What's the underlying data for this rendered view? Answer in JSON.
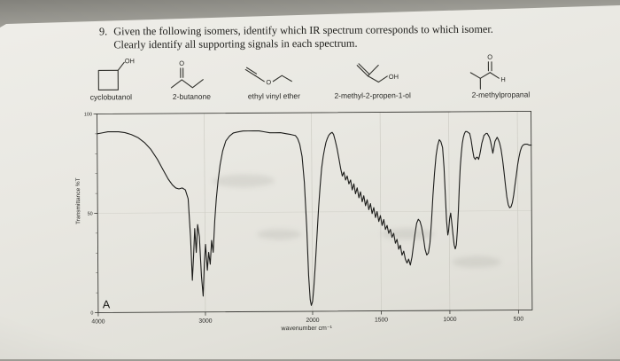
{
  "photo": {
    "paper_color": "#e9e8e2",
    "table_color": "#a9a8a1",
    "ink_color": "#26261f"
  },
  "question": {
    "number": "9.",
    "lines": [
      "Given the following isomers, identify which IR spectrum corresponds to which isomer.",
      "Clearly identify all supporting signals in each spectrum."
    ]
  },
  "molecules": [
    {
      "label": "cyclobutanol",
      "substituent": "OH"
    },
    {
      "label": "2-butanone",
      "carbonyl": "O"
    },
    {
      "label": "ethyl vinyl ether",
      "ether_oxygen": "O"
    },
    {
      "label": "2-methyl-2-propen-1-ol",
      "substituent": "OH"
    },
    {
      "label": "2-methylpropanal",
      "carbonyl": "O",
      "aldehyde_h": "H"
    }
  ],
  "chart_data": {
    "type": "line",
    "title": "",
    "panel_label": "A",
    "xlabel": "wavenumber cm⁻¹",
    "ylabel": "Transmittance %T",
    "x_axis": {
      "unit": "cm⁻¹",
      "max": 4000,
      "scale_break": 2000,
      "min": 400,
      "break_fraction": 0.494,
      "ticks": [
        4000,
        3000,
        2000,
        1500,
        1000,
        500
      ]
    },
    "y_axis": {
      "unit": "%T",
      "min": 0,
      "max": 100,
      "ticks": [
        100,
        50,
        0
      ],
      "minor_tick_step": 10
    },
    "grid": {
      "vertical_at_ticks": true,
      "horizontal_at_50": true
    },
    "series": [
      {
        "name": "IR spectrum A",
        "points": [
          [
            4000,
            90
          ],
          [
            3950,
            90.5
          ],
          [
            3900,
            91
          ],
          [
            3850,
            91
          ],
          [
            3800,
            91
          ],
          [
            3740,
            90.5
          ],
          [
            3680,
            89.5
          ],
          [
            3620,
            88
          ],
          [
            3560,
            85.5
          ],
          [
            3500,
            82
          ],
          [
            3440,
            77
          ],
          [
            3390,
            72
          ],
          [
            3340,
            67
          ],
          [
            3300,
            64
          ],
          [
            3270,
            62.5
          ],
          [
            3240,
            62
          ],
          [
            3210,
            62.5
          ],
          [
            3180,
            61.5
          ],
          [
            3155,
            57
          ],
          [
            3135,
            38
          ],
          [
            3120,
            16
          ],
          [
            3108,
            28
          ],
          [
            3095,
            42
          ],
          [
            3082,
            30
          ],
          [
            3068,
            44
          ],
          [
            3052,
            38
          ],
          [
            3035,
            18
          ],
          [
            3020,
            8
          ],
          [
            3008,
            24
          ],
          [
            2995,
            34
          ],
          [
            2980,
            21
          ],
          [
            2966,
            30
          ],
          [
            2952,
            24
          ],
          [
            2938,
            36
          ],
          [
            2924,
            30
          ],
          [
            2908,
            46
          ],
          [
            2892,
            57
          ],
          [
            2875,
            66
          ],
          [
            2855,
            74
          ],
          [
            2830,
            81
          ],
          [
            2800,
            86
          ],
          [
            2765,
            88.5
          ],
          [
            2730,
            90
          ],
          [
            2690,
            90.5
          ],
          [
            2640,
            91
          ],
          [
            2590,
            91
          ],
          [
            2540,
            91
          ],
          [
            2490,
            91
          ],
          [
            2440,
            90.5
          ],
          [
            2390,
            90
          ],
          [
            2340,
            90
          ],
          [
            2290,
            90
          ],
          [
            2240,
            89.5
          ],
          [
            2190,
            89
          ],
          [
            2150,
            88.5
          ],
          [
            2130,
            87
          ],
          [
            2110,
            84
          ],
          [
            2090,
            78
          ],
          [
            2070,
            65
          ],
          [
            2050,
            42
          ],
          [
            2035,
            18
          ],
          [
            2022,
            6
          ],
          [
            2012,
            3
          ],
          [
            2000,
            5
          ],
          [
            1990,
            12
          ],
          [
            1978,
            24
          ],
          [
            1965,
            38
          ],
          [
            1952,
            52
          ],
          [
            1940,
            63
          ],
          [
            1928,
            72
          ],
          [
            1916,
            78
          ],
          [
            1905,
            82
          ],
          [
            1895,
            85
          ],
          [
            1885,
            87
          ],
          [
            1875,
            88.5
          ],
          [
            1862,
            89.5
          ],
          [
            1850,
            90
          ],
          [
            1840,
            89
          ],
          [
            1828,
            86
          ],
          [
            1815,
            82
          ],
          [
            1802,
            77
          ],
          [
            1790,
            72
          ],
          [
            1778,
            68
          ],
          [
            1766,
            70
          ],
          [
            1754,
            66
          ],
          [
            1742,
            68
          ],
          [
            1730,
            64
          ],
          [
            1718,
            66
          ],
          [
            1706,
            61
          ],
          [
            1694,
            64
          ],
          [
            1682,
            59
          ],
          [
            1670,
            62
          ],
          [
            1658,
            57
          ],
          [
            1646,
            60
          ],
          [
            1634,
            55
          ],
          [
            1622,
            58
          ],
          [
            1610,
            53
          ],
          [
            1598,
            56
          ],
          [
            1586,
            51
          ],
          [
            1574,
            54
          ],
          [
            1562,
            49
          ],
          [
            1550,
            52
          ],
          [
            1538,
            47
          ],
          [
            1526,
            50
          ],
          [
            1514,
            45
          ],
          [
            1502,
            48
          ],
          [
            1490,
            43
          ],
          [
            1478,
            46
          ],
          [
            1466,
            41
          ],
          [
            1454,
            43
          ],
          [
            1442,
            39
          ],
          [
            1430,
            41
          ],
          [
            1418,
            37
          ],
          [
            1406,
            39
          ],
          [
            1394,
            34
          ],
          [
            1382,
            36
          ],
          [
            1370,
            31
          ],
          [
            1358,
            33
          ],
          [
            1346,
            28
          ],
          [
            1334,
            30
          ],
          [
            1322,
            26
          ],
          [
            1310,
            24
          ],
          [
            1298,
            26
          ],
          [
            1286,
            23
          ],
          [
            1274,
            27
          ],
          [
            1262,
            33
          ],
          [
            1250,
            39
          ],
          [
            1238,
            44
          ],
          [
            1226,
            46
          ],
          [
            1214,
            45
          ],
          [
            1202,
            42
          ],
          [
            1190,
            37
          ],
          [
            1178,
            31
          ],
          [
            1166,
            28
          ],
          [
            1154,
            29
          ],
          [
            1142,
            34
          ],
          [
            1130,
            45
          ],
          [
            1118,
            58
          ],
          [
            1106,
            69
          ],
          [
            1094,
            78
          ],
          [
            1082,
            83
          ],
          [
            1070,
            86
          ],
          [
            1058,
            85
          ],
          [
            1046,
            82
          ],
          [
            1036,
            72
          ],
          [
            1028,
            58
          ],
          [
            1020,
            45
          ],
          [
            1012,
            38
          ],
          [
            1006,
            40
          ],
          [
            998,
            46
          ],
          [
            990,
            49
          ],
          [
            982,
            44
          ],
          [
            974,
            38
          ],
          [
            966,
            33
          ],
          [
            958,
            31
          ],
          [
            950,
            33
          ],
          [
            942,
            40
          ],
          [
            934,
            50
          ],
          [
            926,
            62
          ],
          [
            918,
            72
          ],
          [
            910,
            79
          ],
          [
            902,
            84
          ],
          [
            894,
            87
          ],
          [
            886,
            89
          ],
          [
            878,
            90
          ],
          [
            868,
            90
          ],
          [
            858,
            89.5
          ],
          [
            848,
            89
          ],
          [
            838,
            86
          ],
          [
            828,
            81
          ],
          [
            818,
            77
          ],
          [
            808,
            76
          ],
          [
            800,
            77
          ],
          [
            792,
            77
          ],
          [
            784,
            76
          ],
          [
            776,
            78
          ],
          [
            768,
            81
          ],
          [
            760,
            84
          ],
          [
            752,
            86
          ],
          [
            744,
            88
          ],
          [
            736,
            88.5
          ],
          [
            728,
            89
          ],
          [
            720,
            89
          ],
          [
            712,
            88
          ],
          [
            704,
            87
          ],
          [
            696,
            85
          ],
          [
            688,
            82
          ],
          [
            680,
            79
          ],
          [
            672,
            82
          ],
          [
            664,
            85
          ],
          [
            656,
            86
          ],
          [
            648,
            87
          ],
          [
            640,
            86
          ],
          [
            630,
            84
          ],
          [
            620,
            81
          ],
          [
            610,
            76
          ],
          [
            600,
            70
          ],
          [
            590,
            63
          ],
          [
            580,
            57
          ],
          [
            570,
            53
          ],
          [
            560,
            51.5
          ],
          [
            550,
            52
          ],
          [
            540,
            54
          ],
          [
            530,
            58
          ],
          [
            520,
            63
          ],
          [
            510,
            68
          ],
          [
            500,
            73
          ],
          [
            490,
            77
          ],
          [
            480,
            80
          ],
          [
            470,
            82
          ],
          [
            460,
            83
          ],
          [
            445,
            83.5
          ],
          [
            430,
            83.5
          ],
          [
            415,
            83
          ],
          [
            400,
            83
          ]
        ]
      }
    ]
  }
}
